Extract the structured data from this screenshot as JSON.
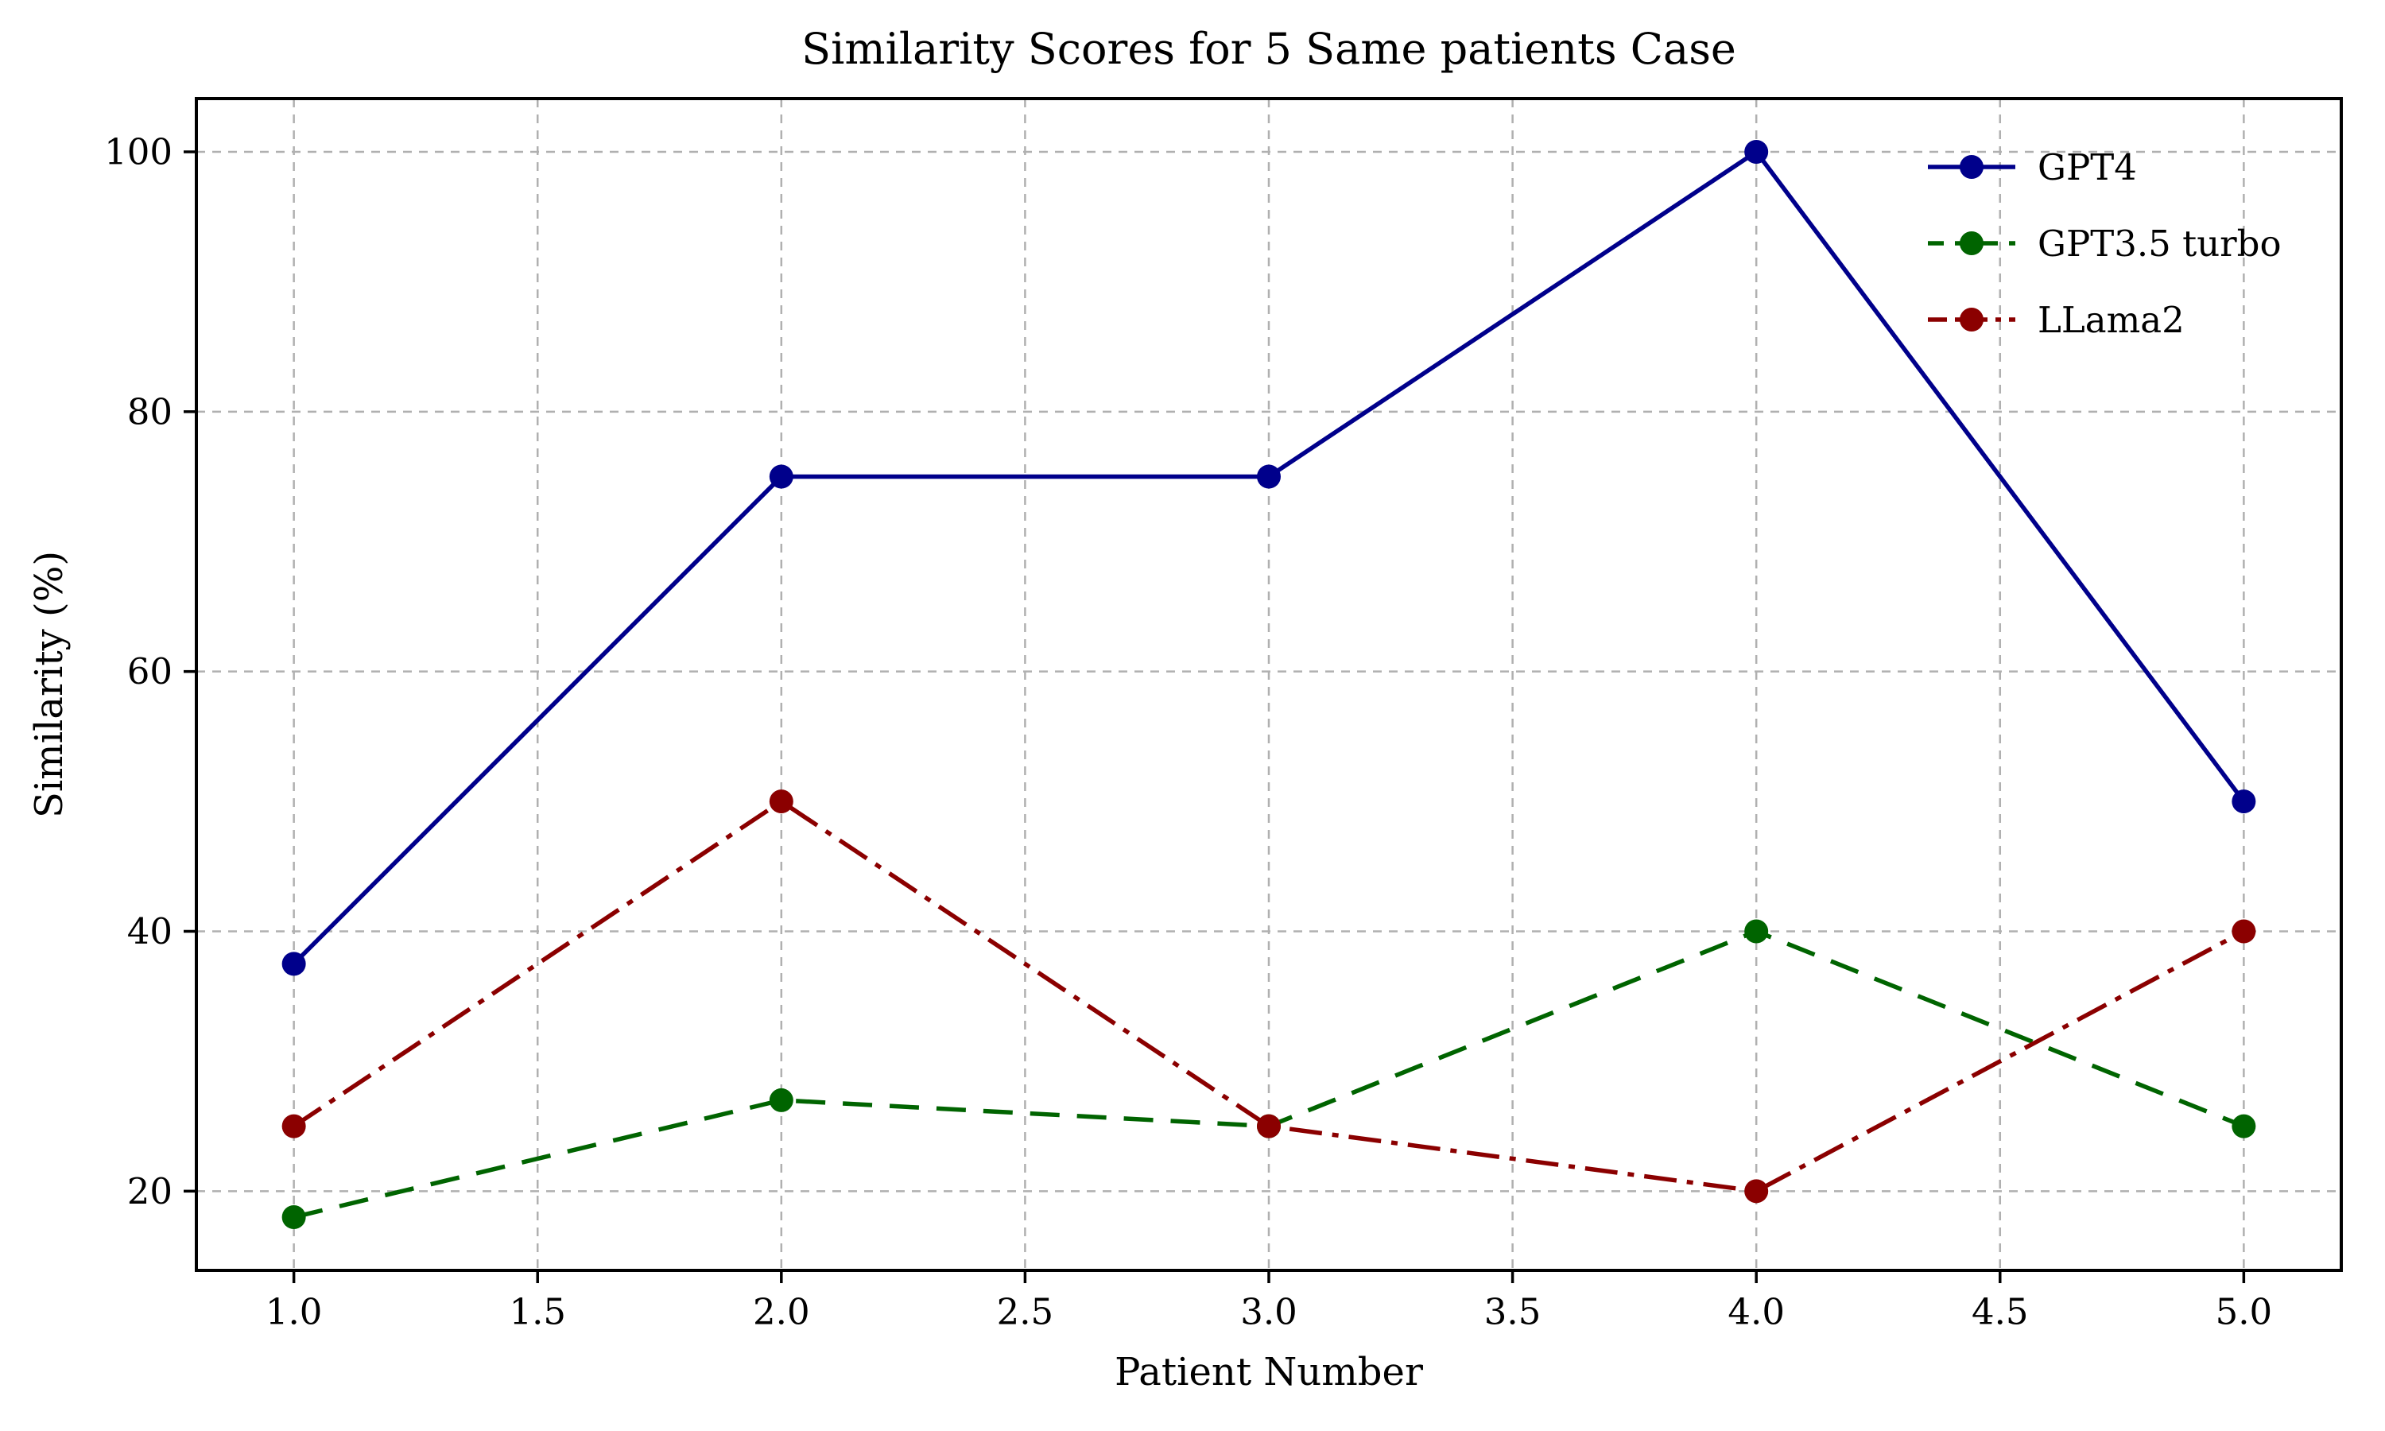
{
  "chart_data": {
    "type": "line",
    "title": "Similarity Scores for 5 Same patients Case",
    "xlabel": "Patient Number",
    "ylabel": "Similarity (%)",
    "x": [
      1,
      2,
      3,
      4,
      5
    ],
    "series": [
      {
        "name": "GPT4",
        "values": [
          37.5,
          75,
          75,
          100,
          50
        ],
        "color": "#00008B",
        "linestyle": "solid",
        "marker": "circle"
      },
      {
        "name": "GPT3.5 turbo",
        "values": [
          18,
          27,
          25,
          40,
          25
        ],
        "color": "#006400",
        "linestyle": "dashed",
        "marker": "circle"
      },
      {
        "name": "LLama2",
        "values": [
          25,
          50,
          25,
          20,
          40
        ],
        "color": "#8B0000",
        "linestyle": "dashdot",
        "marker": "circle"
      }
    ],
    "xticks": [
      1.0,
      1.5,
      2.0,
      2.5,
      3.0,
      3.5,
      4.0,
      4.5,
      5.0
    ],
    "xtick_labels": [
      "1.0",
      "1.5",
      "2.0",
      "2.5",
      "3.0",
      "3.5",
      "4.0",
      "4.5",
      "5.0"
    ],
    "yticks": [
      20,
      40,
      60,
      80,
      100
    ],
    "ytick_labels": [
      "20",
      "40",
      "60",
      "80",
      "100"
    ],
    "xlim": [
      0.8,
      5.2
    ],
    "ylim": [
      13.9,
      104.1
    ],
    "grid": true,
    "grid_color": "#b0b0b0",
    "axis_color": "#000000",
    "text_color": "#000000",
    "background": "#ffffff",
    "legend_position": "upper right",
    "legend_frame": false
  }
}
